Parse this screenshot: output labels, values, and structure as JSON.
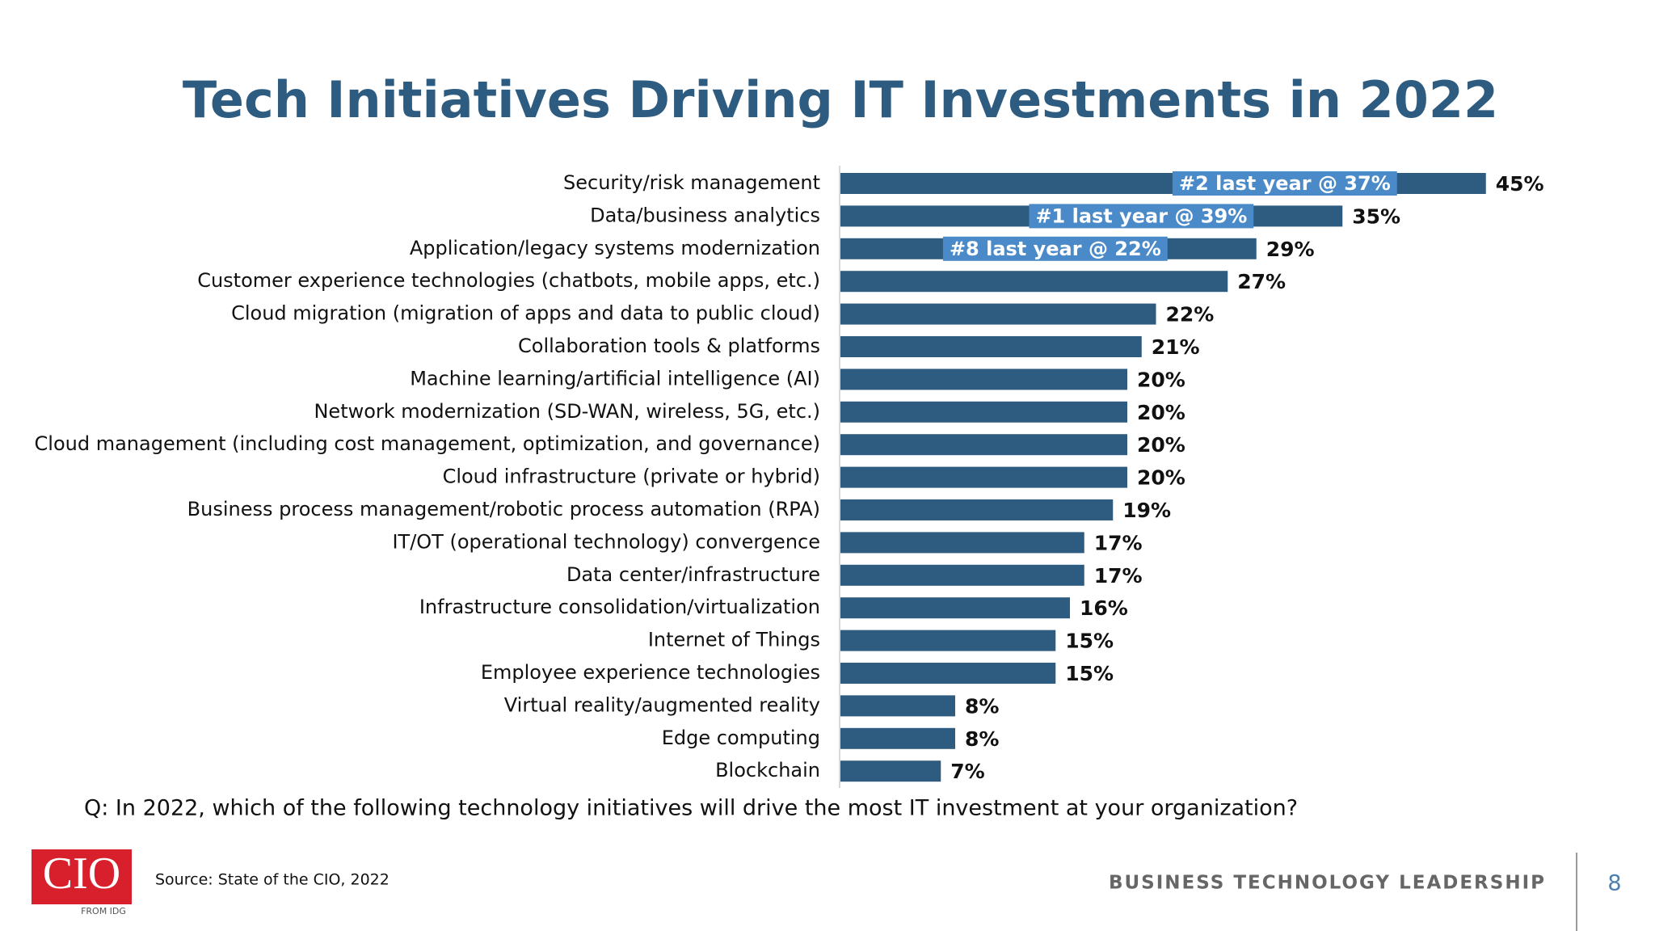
{
  "chart_data": {
    "type": "bar",
    "orientation": "horizontal",
    "title": "Tech Initiatives Driving IT Investments in 2022",
    "categories": [
      "Security/risk management",
      "Data/business analytics",
      "Application/legacy systems modernization",
      "Customer experience technologies (chatbots, mobile apps, etc.)",
      "Cloud migration (migration of apps and data to public cloud)",
      "Collaboration tools & platforms",
      "Machine learning/artificial intelligence (AI)",
      "Network modernization (SD-WAN, wireless, 5G, etc.)",
      "Cloud management (including cost management, optimization, and governance)",
      "Cloud infrastructure (private or hybrid)",
      "Business process management/robotic process automation (RPA)",
      "IT/OT (operational technology) convergence",
      "Data center/infrastructure",
      "Infrastructure consolidation/virtualization",
      "Internet of Things",
      "Employee experience technologies",
      "Virtual reality/augmented reality",
      "Edge computing",
      "Blockchain"
    ],
    "values": [
      45,
      35,
      29,
      27,
      22,
      21,
      20,
      20,
      20,
      20,
      19,
      17,
      17,
      16,
      15,
      15,
      8,
      8,
      7
    ],
    "value_labels": [
      "45%",
      "35%",
      "29%",
      "27%",
      "22%",
      "21%",
      "20%",
      "20%",
      "20%",
      "20%",
      "19%",
      "17%",
      "17%",
      "16%",
      "15%",
      "15%",
      "8%",
      "8%",
      "7%"
    ],
    "annotations": [
      "#2 last year @ 37%",
      "#1 last year @ 39%",
      "#8 last year @ 22%"
    ],
    "color": "#2e5b80",
    "annotation_color": "#4a8ac8",
    "question": "Q: In 2022, which of the following technology initiatives will drive the most IT investment at your organization?"
  },
  "footer": {
    "logo": "CIO",
    "logo_sub": "FROM IDG",
    "source": "Source: State of the CIO, 2022",
    "tagline": "BUSINESS TECHNOLOGY LEADERSHIP",
    "page_number": "8"
  }
}
